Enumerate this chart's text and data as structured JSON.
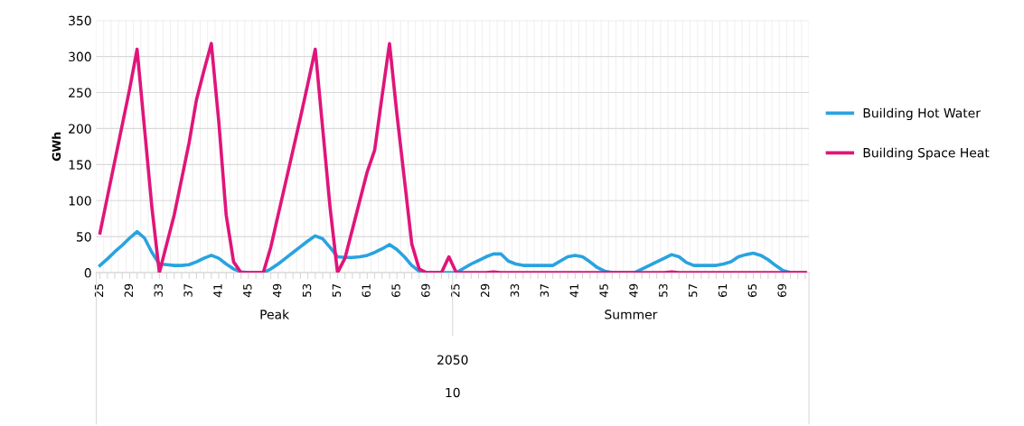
{
  "chart_data": {
    "type": "line",
    "ylabel": "GWh",
    "categories": [
      "25",
      null,
      null,
      null,
      "29",
      null,
      null,
      null,
      "33",
      null,
      null,
      null,
      "37",
      null,
      null,
      null,
      "41",
      null,
      null,
      null,
      "45",
      null,
      null,
      null,
      "49",
      null,
      null,
      null,
      "53",
      null,
      null,
      null,
      "57",
      null,
      null,
      null,
      "61",
      null,
      null,
      null,
      "65",
      null,
      null,
      null,
      "69",
      null,
      null,
      null,
      "25",
      null,
      null,
      null,
      "29",
      null,
      null,
      null,
      "33",
      null,
      null,
      null,
      "37",
      null,
      null,
      null,
      "41",
      null,
      null,
      null,
      "45",
      null,
      null,
      null,
      "49",
      null,
      null,
      null,
      "53",
      null,
      null,
      null,
      "57",
      null,
      null,
      null,
      "61",
      null,
      null,
      null,
      "65",
      null,
      null,
      null,
      "69",
      null,
      null,
      null
    ],
    "series": [
      {
        "name": "Building Hot Water",
        "color": "#29a3e0",
        "values": [
          10,
          19,
          29,
          38,
          48,
          57,
          48,
          28,
          12,
          11,
          10,
          10,
          11,
          15,
          20,
          24,
          20,
          12,
          5,
          1,
          0,
          0,
          0,
          5,
          12,
          20,
          28,
          36,
          44,
          51,
          47,
          35,
          22,
          21,
          21,
          22,
          24,
          28,
          33,
          39,
          32,
          22,
          10,
          2,
          0,
          0,
          0,
          0,
          0,
          6,
          12,
          17,
          22,
          26,
          26,
          16,
          12,
          10,
          10,
          10,
          10,
          10,
          16,
          22,
          24,
          22,
          15,
          7,
          2,
          0,
          0,
          0,
          0,
          5,
          10,
          15,
          20,
          25,
          22,
          14,
          10,
          10,
          10,
          10,
          12,
          15,
          22,
          25,
          27,
          24,
          18,
          10,
          3,
          0,
          0,
          0
        ]
      },
      {
        "name": "Building Space Heat",
        "color": "#e0157a",
        "values": [
          55,
          105,
          155,
          205,
          255,
          310,
          200,
          90,
          0,
          40,
          80,
          130,
          180,
          240,
          280,
          318,
          210,
          80,
          15,
          0,
          0,
          0,
          0,
          35,
          80,
          125,
          170,
          215,
          262,
          310,
          200,
          90,
          0,
          20,
          60,
          100,
          140,
          170,
          245,
          318,
          220,
          130,
          40,
          5,
          0,
          0,
          0,
          22,
          0,
          0,
          0,
          0,
          0,
          1,
          0,
          0,
          0,
          0,
          0,
          0,
          0,
          0,
          0,
          0,
          0,
          0,
          0,
          0,
          0,
          0,
          0,
          0,
          0,
          0,
          0,
          0,
          0,
          1,
          0,
          0,
          0,
          0,
          0,
          0,
          0,
          0,
          0,
          0,
          0,
          0,
          0,
          0,
          0,
          0,
          0,
          0
        ]
      }
    ],
    "ylim": [
      0,
      350
    ],
    "yticks": [
      0,
      50,
      100,
      150,
      200,
      250,
      300,
      350
    ],
    "grid": true,
    "legend": "right",
    "marker": "none",
    "line_style": "solid",
    "annotations": [
      "Peak",
      "Summer",
      "2050",
      "10"
    ]
  }
}
